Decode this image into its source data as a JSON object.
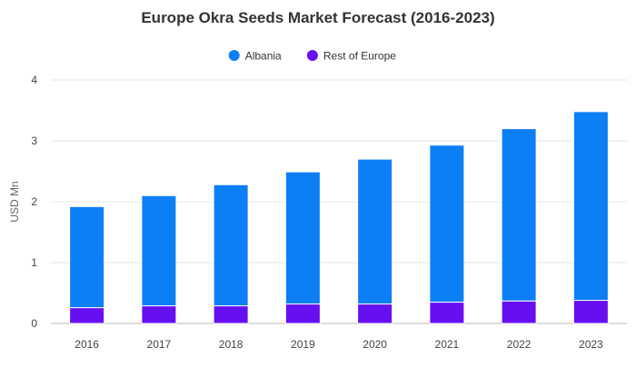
{
  "chart_data": {
    "type": "bar",
    "stacked": true,
    "title": "Europe Okra Seeds Market Forecast (2016-2023)",
    "xlabel": "",
    "ylabel": "USD Mn",
    "categories": [
      "2016",
      "2017",
      "2018",
      "2019",
      "2020",
      "2021",
      "2022",
      "2023"
    ],
    "series": [
      {
        "name": "Rest of Europe",
        "color": "#6610f2",
        "values": [
          0.26,
          0.29,
          0.29,
          0.32,
          0.32,
          0.35,
          0.37,
          0.38
        ]
      },
      {
        "name": "Albania",
        "color": "#0d7ff5",
        "values": [
          1.66,
          1.81,
          1.99,
          2.17,
          2.38,
          2.58,
          2.83,
          3.1
        ]
      }
    ],
    "legend_order": [
      "Albania",
      "Rest of Europe"
    ],
    "legend_position": "top",
    "ylim": [
      0,
      4
    ],
    "yticks": [
      "0",
      "1",
      "2",
      "3",
      "4"
    ],
    "grid": true
  }
}
